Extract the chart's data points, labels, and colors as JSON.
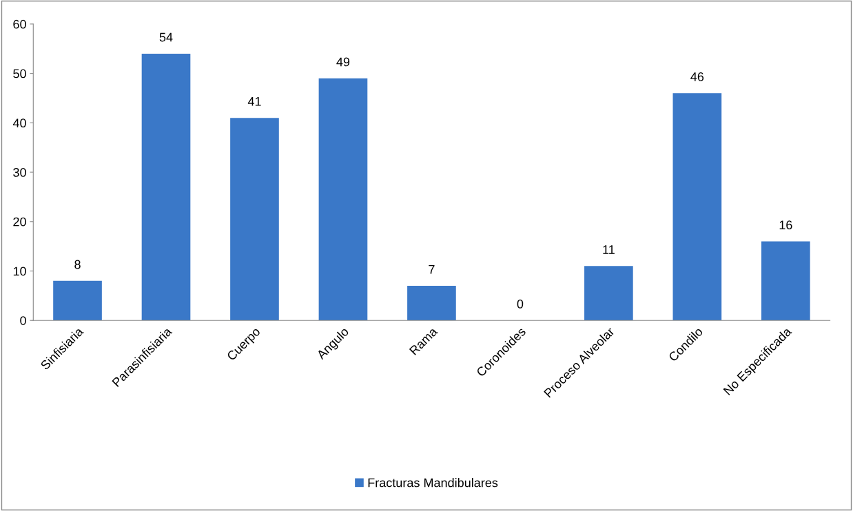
{
  "chart_data": {
    "type": "bar",
    "categories": [
      "Sinfisiaria",
      "Parasinfisiaria",
      "Cuerpo",
      "Angulo",
      "Rama",
      "Coronoides",
      "Proceso Alveolar",
      "Condilo",
      "No Especificada"
    ],
    "series": [
      {
        "name": "Fracturas Mandibulares",
        "color": "#3a78c8",
        "values": [
          8,
          54,
          41,
          49,
          7,
          0,
          11,
          46,
          16
        ]
      }
    ],
    "ylim": [
      0,
      60
    ],
    "yticks": [
      0,
      10,
      20,
      30,
      40,
      50,
      60
    ],
    "data_labels": true,
    "grid": false,
    "legend": "bottom"
  }
}
